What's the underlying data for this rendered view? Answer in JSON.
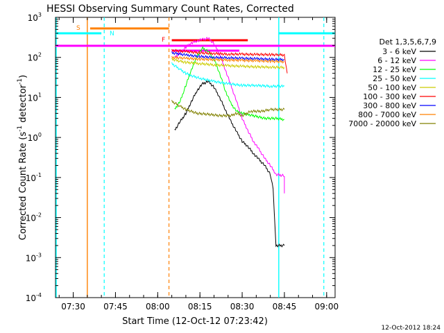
{
  "chart_data": {
    "type": "line",
    "title": "HESSI Observing Summary Count Rates, Corrected",
    "xlabel": "Start Time (12-Oct-12 07:23:42)",
    "ylabel_main": "Corrected Count Rate (s",
    "ylabel_sup1": "-1",
    "ylabel_mid": " detector",
    "ylabel_sup2": "-1",
    "ylabel_end": ")",
    "yscale": "log",
    "xlim": [
      "07:23:42",
      "09:03:00"
    ],
    "ylim": [
      0.0001,
      1000
    ],
    "xticks": [
      "07:30",
      "07:45",
      "08:00",
      "08:15",
      "08:30",
      "08:45",
      "09:00"
    ],
    "yticks": [
      {
        "base": "10",
        "exp": "-4",
        "value": 0.0001
      },
      {
        "base": "10",
        "exp": "-3",
        "value": 0.001
      },
      {
        "base": "10",
        "exp": "-2",
        "value": 0.01
      },
      {
        "base": "10",
        "exp": "-1",
        "value": 0.1
      },
      {
        "base": "10",
        "exp": "0",
        "value": 1
      },
      {
        "base": "10",
        "exp": "1",
        "value": 10
      },
      {
        "base": "10",
        "exp": "2",
        "value": 100
      },
      {
        "base": "10",
        "exp": "3",
        "value": 1000
      }
    ],
    "legend_title": "Det 1,3,5,6,7,9",
    "legend_placement": "right",
    "series": [
      {
        "name": "3 - 6 keV",
        "color": "#000000",
        "points": [
          [
            "08:06",
            1.5
          ],
          [
            "08:08",
            2.5
          ],
          [
            "08:10",
            4
          ],
          [
            "08:12",
            8
          ],
          [
            "08:14",
            15
          ],
          [
            "08:16",
            22
          ],
          [
            "08:18",
            25
          ],
          [
            "08:20",
            18
          ],
          [
            "08:22",
            10
          ],
          [
            "08:24",
            5
          ],
          [
            "08:26",
            2.5
          ],
          [
            "08:28",
            1.4
          ],
          [
            "08:30",
            0.8
          ],
          [
            "08:32",
            0.6
          ],
          [
            "08:34",
            0.4
          ],
          [
            "08:36",
            0.28
          ],
          [
            "08:38",
            0.2
          ],
          [
            "08:40",
            0.12
          ],
          [
            "08:41",
            0.05
          ],
          [
            "08:42",
            0.002
          ],
          [
            "08:45",
            0.002
          ]
        ]
      },
      {
        "name": "6 - 12 keV",
        "color": "#ff00ff",
        "points": [
          [
            "08:06",
            100
          ],
          [
            "08:08",
            130
          ],
          [
            "08:10",
            180
          ],
          [
            "08:12",
            230
          ],
          [
            "08:14",
            260
          ],
          [
            "08:16",
            280
          ],
          [
            "08:18",
            300
          ],
          [
            "08:20",
            220
          ],
          [
            "08:22",
            120
          ],
          [
            "08:24",
            50
          ],
          [
            "08:26",
            20
          ],
          [
            "08:28",
            8
          ],
          [
            "08:30",
            3
          ],
          [
            "08:32",
            1.5
          ],
          [
            "08:34",
            0.8
          ],
          [
            "08:36",
            0.5
          ],
          [
            "08:38",
            0.3
          ],
          [
            "08:40",
            0.2
          ],
          [
            "08:42",
            0.12
          ],
          [
            "08:45",
            0.11
          ],
          [
            "08:45",
            0.04
          ]
        ]
      },
      {
        "name": "12 - 25 keV",
        "color": "#00ff00",
        "points": [
          [
            "08:06",
            5
          ],
          [
            "08:08",
            8
          ],
          [
            "08:10",
            20
          ],
          [
            "08:12",
            50
          ],
          [
            "08:14",
            110
          ],
          [
            "08:16",
            170
          ],
          [
            "08:18",
            140
          ],
          [
            "08:20",
            90
          ],
          [
            "08:22",
            40
          ],
          [
            "08:24",
            15
          ],
          [
            "08:26",
            7
          ],
          [
            "08:28",
            4.5
          ],
          [
            "08:30",
            4
          ],
          [
            "08:34",
            3.5
          ],
          [
            "08:38",
            3
          ],
          [
            "08:42",
            3
          ],
          [
            "08:45",
            2.8
          ]
        ]
      },
      {
        "name": "25 - 50 keV",
        "color": "#00ffff",
        "points": [
          [
            "08:05",
            70
          ],
          [
            "08:08",
            50
          ],
          [
            "08:10",
            40
          ],
          [
            "08:12",
            35
          ],
          [
            "08:15",
            30
          ],
          [
            "08:20",
            25
          ],
          [
            "08:25",
            22
          ],
          [
            "08:30",
            20
          ],
          [
            "08:35",
            20
          ],
          [
            "08:40",
            19
          ],
          [
            "08:45",
            19
          ]
        ]
      },
      {
        "name": "50 - 100 keV",
        "color": "#cccc00",
        "points": [
          [
            "08:05",
            90
          ],
          [
            "08:08",
            80
          ],
          [
            "08:10",
            75
          ],
          [
            "08:15",
            70
          ],
          [
            "08:20",
            65
          ],
          [
            "08:25",
            62
          ],
          [
            "08:30",
            60
          ],
          [
            "08:35",
            58
          ],
          [
            "08:40",
            57
          ],
          [
            "08:45",
            56
          ]
        ]
      },
      {
        "name": "100 - 300 keV",
        "color": "#ff0000",
        "points": [
          [
            "08:05",
            150
          ],
          [
            "08:10",
            140
          ],
          [
            "08:15",
            130
          ],
          [
            "08:20",
            125
          ],
          [
            "08:25",
            120
          ],
          [
            "08:30",
            120
          ],
          [
            "08:35",
            118
          ],
          [
            "08:40",
            117
          ],
          [
            "08:45",
            115
          ],
          [
            "08:46",
            40
          ]
        ]
      },
      {
        "name": "300 - 800 keV",
        "color": "#0000ff",
        "points": [
          [
            "08:05",
            130
          ],
          [
            "08:10",
            115
          ],
          [
            "08:15",
            105
          ],
          [
            "08:20",
            100
          ],
          [
            "08:25",
            98
          ],
          [
            "08:30",
            95
          ],
          [
            "08:35",
            93
          ],
          [
            "08:40",
            90
          ],
          [
            "08:45",
            88
          ]
        ]
      },
      {
        "name": "800 - 7000 keV",
        "color": "#ff8000",
        "points": [
          [
            "08:05",
            100
          ],
          [
            "08:10",
            95
          ],
          [
            "08:15",
            90
          ],
          [
            "08:20",
            88
          ],
          [
            "08:25",
            86
          ],
          [
            "08:30",
            84
          ],
          [
            "08:35",
            82
          ],
          [
            "08:40",
            80
          ],
          [
            "08:45",
            78
          ]
        ]
      },
      {
        "name": "7000 - 20000 keV",
        "color": "#808000",
        "points": [
          [
            "08:05",
            8
          ],
          [
            "08:08",
            6
          ],
          [
            "08:10",
            5
          ],
          [
            "08:14",
            4
          ],
          [
            "08:18",
            3.8
          ],
          [
            "08:22",
            3.5
          ],
          [
            "08:26",
            3.5
          ],
          [
            "08:28",
            4
          ],
          [
            "08:30",
            3.5
          ],
          [
            "08:33",
            4.5
          ],
          [
            "08:37",
            4.5
          ],
          [
            "08:40",
            5
          ],
          [
            "08:45",
            5
          ]
        ]
      }
    ],
    "annotations": [
      {
        "label": "S",
        "color": "#ff8000"
      },
      {
        "label": "N",
        "color": "#00ffff"
      },
      {
        "label": "F",
        "color": "#ff0000"
      }
    ],
    "footer_date": "12-Oct-2012 18:24"
  }
}
